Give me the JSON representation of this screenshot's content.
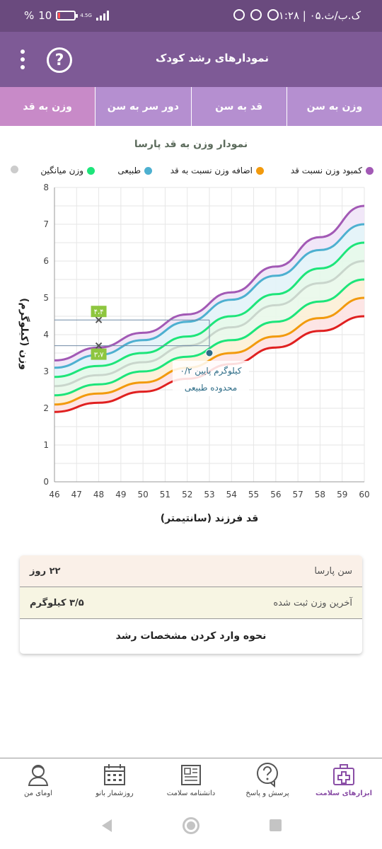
{
  "status_bar": {
    "time": "۱:۲۸ | ۰۵.ک.ب/ث",
    "battery": "10",
    "battery_percent": "%",
    "network": "4.5G"
  },
  "app_bar": {
    "title": "نمودارهای رشد کودک",
    "help_label": "?"
  },
  "tabs": [
    {
      "label": "وزن به سن",
      "active": false
    },
    {
      "label": "قد به سن",
      "active": false
    },
    {
      "label": "دور سر به سن",
      "active": false
    },
    {
      "label": "وزن به قد",
      "active": true
    }
  ],
  "chart_title": "نمودار وزن به قد پارسا",
  "legend": [
    {
      "label": "کمبود وزن نسبت قد",
      "color": "#a259b5"
    },
    {
      "label": "اضافه وزن نسبت به قد",
      "color": "#f29a0d"
    },
    {
      "label": "طبیعی",
      "color": "#4db0d0"
    },
    {
      "label": "وزن میانگین",
      "color": "#1de57a"
    },
    {
      "label": "",
      "color": "#cccccc"
    }
  ],
  "chart_data": {
    "type": "line",
    "xlabel": "قد فرزند (سانتیمتر)",
    "ylabel": "وزن (کیلوگرم)",
    "xlim": [
      46,
      60
    ],
    "ylim": [
      0,
      8
    ],
    "x_ticks": [
      "46",
      "47",
      "48",
      "49",
      "50",
      "51",
      "52",
      "53",
      "54",
      "55",
      "56",
      "57",
      "58",
      "59",
      "60"
    ],
    "y_ticks": [
      "0",
      "1",
      "2",
      "3",
      "4",
      "5",
      "6",
      "7",
      "8"
    ],
    "x": [
      46,
      48,
      50,
      52,
      54,
      56,
      58,
      60
    ],
    "series": [
      {
        "color": "#a259b5",
        "values": [
          3.3,
          3.65,
          4.05,
          4.55,
          5.15,
          5.85,
          6.65,
          7.5
        ]
      },
      {
        "color": "#4db0d0",
        "values": [
          3.1,
          3.45,
          3.85,
          4.35,
          4.95,
          5.6,
          6.3,
          7.0
        ]
      },
      {
        "color": "#1de57a",
        "values": [
          2.85,
          3.15,
          3.5,
          3.95,
          4.5,
          5.1,
          5.8,
          6.5
        ]
      },
      {
        "color": "#c9d6cc",
        "values": [
          2.6,
          2.9,
          3.25,
          3.7,
          4.2,
          4.8,
          5.4,
          6.0
        ]
      },
      {
        "color": "#1de57a",
        "values": [
          2.35,
          2.65,
          3.0,
          3.4,
          3.85,
          4.35,
          4.9,
          5.5
        ]
      },
      {
        "color": "#f29a0d",
        "values": [
          2.1,
          2.4,
          2.7,
          3.1,
          3.5,
          3.95,
          4.45,
          5.0
        ]
      },
      {
        "color": "#e02020",
        "values": [
          1.9,
          2.15,
          2.45,
          2.8,
          3.2,
          3.65,
          4.1,
          4.5
        ]
      }
    ],
    "markers": [
      {
        "x": 48,
        "y": 4.4,
        "label": "۴،۴"
      },
      {
        "x": 48,
        "y": 3.7,
        "label": "۳،۷"
      }
    ],
    "child_point": {
      "x": 53,
      "y": 3.5
    },
    "annotation": [
      "۰/۲ کیلوگرم پایین",
      "محدوده طبیعی"
    ]
  },
  "info_card": {
    "age_label": "سن پارسا",
    "age_value": "۲۲ روز",
    "weight_label": "آخرین وزن ثبت شده",
    "weight_value": "۳/۵ کیلوگرم",
    "link_label": "نحوه وارد کردن مشخصات رشد"
  },
  "bottom_nav": [
    {
      "label": "ابزارهای سلامت",
      "icon": "medical-kit-icon",
      "active": true
    },
    {
      "label": "پرسش و پاسخ",
      "icon": "question-bubble-icon",
      "active": false
    },
    {
      "label": "دانشنامه سلامت",
      "icon": "newspaper-icon",
      "active": false
    },
    {
      "label": "روزشمار بانو",
      "icon": "calendar-icon",
      "active": false
    },
    {
      "label": "اومای من",
      "icon": "profile-icon",
      "active": false
    }
  ]
}
